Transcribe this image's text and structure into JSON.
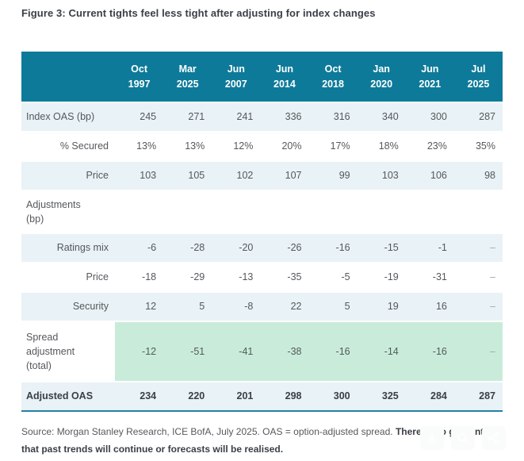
{
  "chart_data": {
    "type": "table",
    "title": "Figure 3: Current tights feel less tight after adjusting for index changes",
    "columns": [
      {
        "month": "Oct",
        "year": "1997"
      },
      {
        "month": "Mar",
        "year": "2025"
      },
      {
        "month": "Jun",
        "year": "2007"
      },
      {
        "month": "Jun",
        "year": "2014"
      },
      {
        "month": "Oct",
        "year": "2018"
      },
      {
        "month": "Jan",
        "year": "2020"
      },
      {
        "month": "Jun",
        "year": "2021"
      },
      {
        "month": "Jul",
        "year": "2025"
      }
    ],
    "rows": [
      {
        "label": "Index OAS (bp)",
        "level": "main",
        "bg": "blue",
        "bold": false,
        "values": [
          "245",
          "271",
          "241",
          "336",
          "316",
          "340",
          "300",
          "287"
        ]
      },
      {
        "label": "% Secured",
        "level": "sub",
        "bg": "white",
        "bold": false,
        "values": [
          "13%",
          "13%",
          "12%",
          "20%",
          "17%",
          "18%",
          "23%",
          "35%"
        ]
      },
      {
        "label": "Price",
        "level": "sub",
        "bg": "blue",
        "bold": false,
        "values": [
          "103",
          "105",
          "102",
          "107",
          "99",
          "103",
          "106",
          "98"
        ]
      },
      {
        "label": "Adjustments\n(bp)",
        "level": "main",
        "bg": "white",
        "bold": false,
        "values": [
          "",
          "",
          "",
          "",
          "",
          "",
          "",
          ""
        ]
      },
      {
        "label": "Ratings mix",
        "level": "sub",
        "bg": "blue",
        "bold": false,
        "values": [
          "-6",
          "-28",
          "-20",
          "-26",
          "-16",
          "-15",
          "-1",
          "–"
        ]
      },
      {
        "label": "Price",
        "level": "sub",
        "bg": "white",
        "bold": false,
        "values": [
          "-18",
          "-29",
          "-13",
          "-35",
          "-5",
          "-19",
          "-31",
          "–"
        ]
      },
      {
        "label": "Security",
        "level": "sub",
        "bg": "blue",
        "bold": false,
        "values": [
          "12",
          "5",
          "-8",
          "22",
          "5",
          "19",
          "16",
          "–"
        ]
      },
      {
        "label": "Spread\nadjustment\n(total)",
        "level": "main",
        "bg": "green",
        "bold": false,
        "values": [
          "-12",
          "-51",
          "-41",
          "-38",
          "-16",
          "-14",
          "-16",
          "–"
        ]
      },
      {
        "label": "Adjusted OAS",
        "level": "main",
        "bg": "blue",
        "bold": true,
        "values": [
          "234",
          "220",
          "201",
          "298",
          "300",
          "325",
          "284",
          "287"
        ]
      }
    ]
  },
  "source": {
    "regular": "Source: Morgan Stanley Research, ICE BofA, July 2025. OAS = option-adjusted spread. ",
    "bold": "There is no guarantee that past trends will continue or forecasts will be realised."
  },
  "toolbar": {
    "icons": [
      "download-icon",
      "zoom-icon",
      "share-icon"
    ]
  },
  "colors": {
    "header_teal": "#0E7A99",
    "row_blue": "#E9F2F6",
    "adjustment_green": "#C9ECDA",
    "table_bottom_border": "#2380A2",
    "text": "#55585C",
    "title_text": "#3A3F47",
    "dash": "#9FAAB2"
  }
}
